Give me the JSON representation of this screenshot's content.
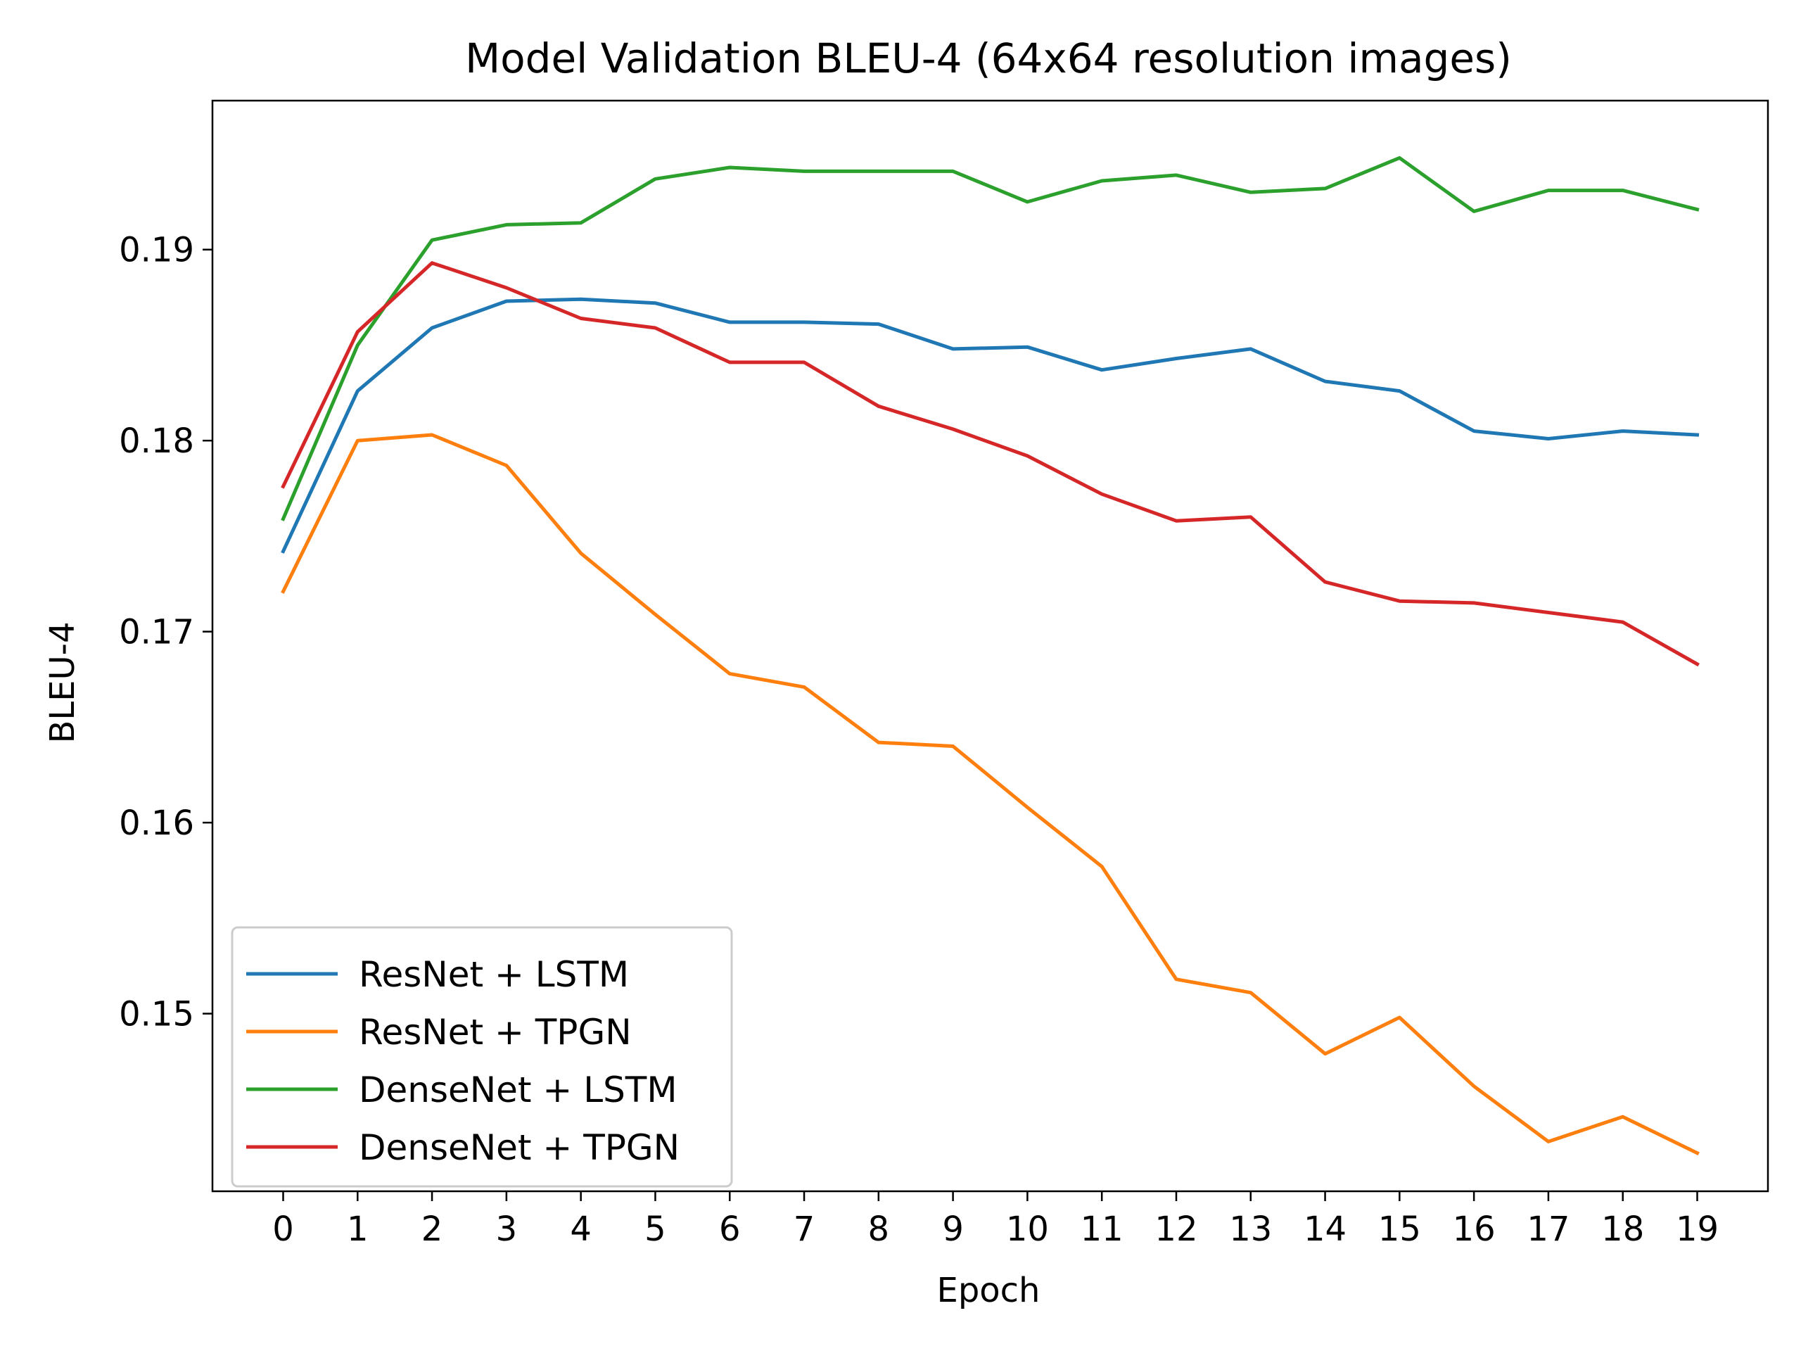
{
  "chart_data": {
    "type": "line",
    "title": "Model Validation BLEU-4 (64x64 resolution images)",
    "xlabel": "Epoch",
    "ylabel": "BLEU-4",
    "x": [
      0,
      1,
      2,
      3,
      4,
      5,
      6,
      7,
      8,
      9,
      10,
      11,
      12,
      13,
      14,
      15,
      16,
      17,
      18,
      19
    ],
    "x_tick_labels": [
      "0",
      "1",
      "2",
      "3",
      "4",
      "5",
      "6",
      "7",
      "8",
      "9",
      "10",
      "11",
      "12",
      "13",
      "14",
      "15",
      "16",
      "17",
      "18",
      "19"
    ],
    "y_ticks": [
      0.15,
      0.16,
      0.17,
      0.18,
      0.19
    ],
    "y_tick_labels": [
      "0.15",
      "0.16",
      "0.17",
      "0.18",
      "0.19"
    ],
    "xlim": [
      -0.95,
      19.95
    ],
    "ylim": [
      0.1407,
      0.1978
    ],
    "grid": false,
    "legend_position": "lower-left",
    "series": [
      {
        "name": "ResNet + LSTM",
        "color": "#1f77b4",
        "values": [
          0.1742,
          0.1826,
          0.1859,
          0.1873,
          0.1874,
          0.1872,
          0.1862,
          0.1862,
          0.1861,
          0.1848,
          0.1849,
          0.1837,
          0.1843,
          0.1848,
          0.1831,
          0.1826,
          0.1805,
          0.1801,
          0.1805,
          0.1803
        ]
      },
      {
        "name": "ResNet + TPGN",
        "color": "#ff7f0e",
        "values": [
          0.1721,
          0.18,
          0.1803,
          0.1787,
          0.1741,
          0.1709,
          0.1678,
          0.1671,
          0.1642,
          0.164,
          0.1608,
          0.1577,
          0.1518,
          0.1511,
          0.1479,
          0.1498,
          0.1462,
          0.1433,
          0.1446,
          0.1427
        ]
      },
      {
        "name": "DenseNet + LSTM",
        "color": "#2ca02c",
        "values": [
          0.1759,
          0.185,
          0.1905,
          0.1913,
          0.1914,
          0.1937,
          0.1943,
          0.1941,
          0.1941,
          0.1941,
          0.1925,
          0.1936,
          0.1939,
          0.193,
          0.1932,
          0.1948,
          0.192,
          0.1931,
          0.1931,
          0.1921
        ]
      },
      {
        "name": "DenseNet + TPGN",
        "color": "#d62728",
        "values": [
          0.1776,
          0.1857,
          0.1893,
          0.188,
          0.1864,
          0.1859,
          0.1841,
          0.1841,
          0.1818,
          0.1806,
          0.1792,
          0.1772,
          0.1758,
          0.176,
          0.1726,
          0.1716,
          0.1715,
          0.171,
          0.1705,
          0.1683
        ]
      }
    ]
  }
}
